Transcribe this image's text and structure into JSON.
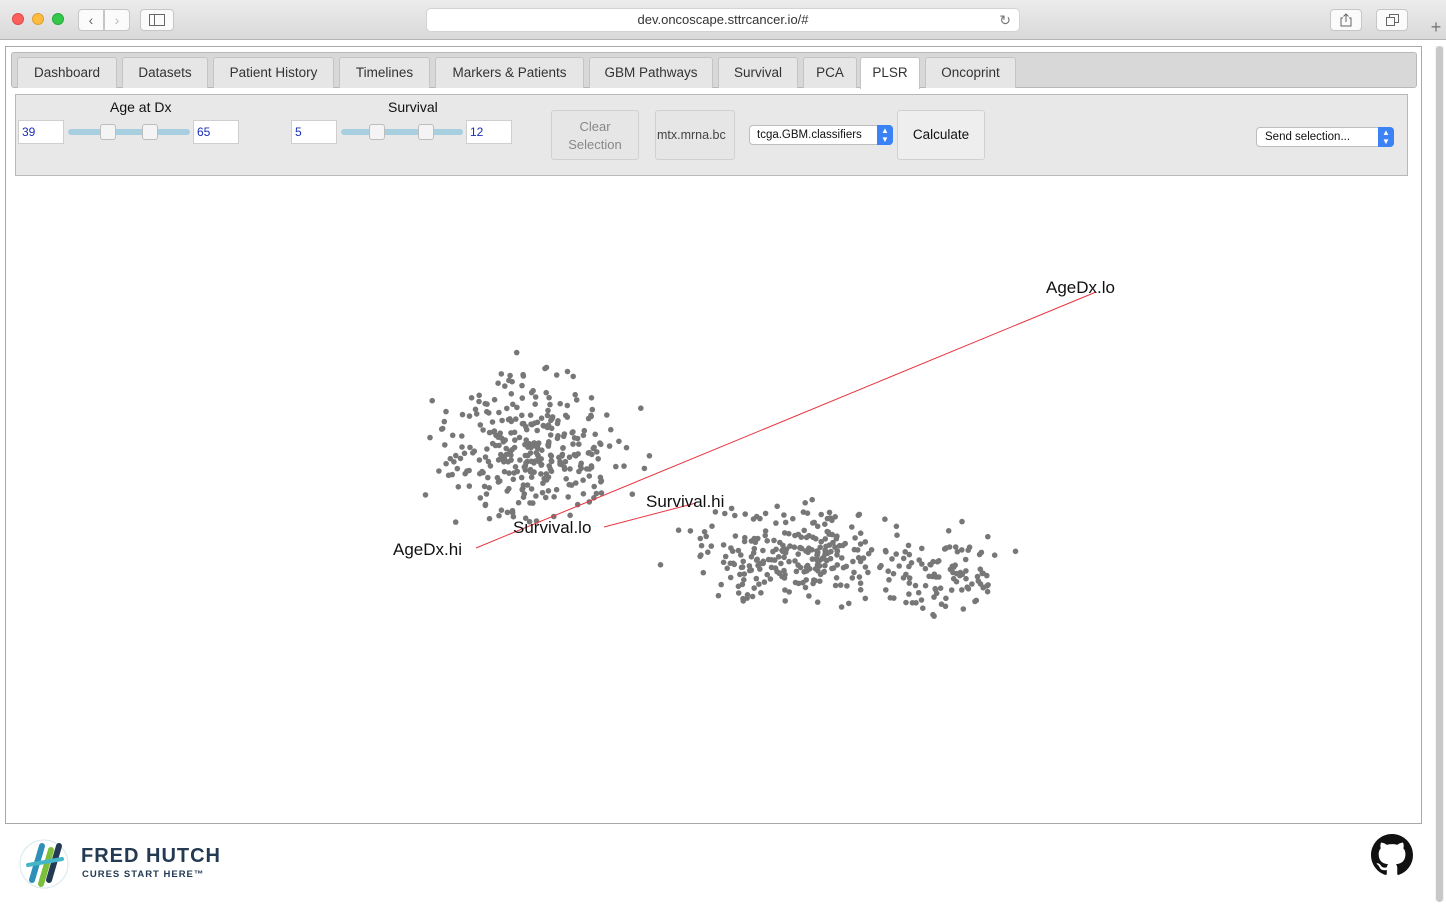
{
  "browser": {
    "url": "dev.oncoscape.sttrcancer.io/#"
  },
  "tabs": [
    {
      "label": "Dashboard",
      "active": false
    },
    {
      "label": "Datasets",
      "active": false
    },
    {
      "label": "Patient History",
      "active": false
    },
    {
      "label": "Timelines",
      "active": false
    },
    {
      "label": "Markers & Patients",
      "active": false
    },
    {
      "label": "GBM Pathways",
      "active": false
    },
    {
      "label": "Survival",
      "active": false
    },
    {
      "label": "PCA",
      "active": false
    },
    {
      "label": "PLSR",
      "active": true
    },
    {
      "label": "Oncoprint",
      "active": false
    }
  ],
  "controls": {
    "age": {
      "label": "Age at Dx",
      "min_value": "39",
      "max_value": "65"
    },
    "survival": {
      "label": "Survival",
      "min_value": "5",
      "max_value": "12"
    },
    "clear_button": "Clear Selection",
    "matrix_button": "mtx.mrna.bc",
    "classifier_select": "tcga.GBM.classifiers",
    "calculate_button": "Calculate",
    "send_select": "Send selection..."
  },
  "plot": {
    "point_color": "#777777",
    "vector_color": "#e8343f",
    "vectors": [
      {
        "label": "AgeDx.lo"
      },
      {
        "label": "AgeDx.hi"
      },
      {
        "label": "Survival.hi"
      },
      {
        "label": "Survival.lo"
      }
    ]
  },
  "footer": {
    "org_name": "FRED HUTCH",
    "tagline": "CURES START HERE™"
  }
}
